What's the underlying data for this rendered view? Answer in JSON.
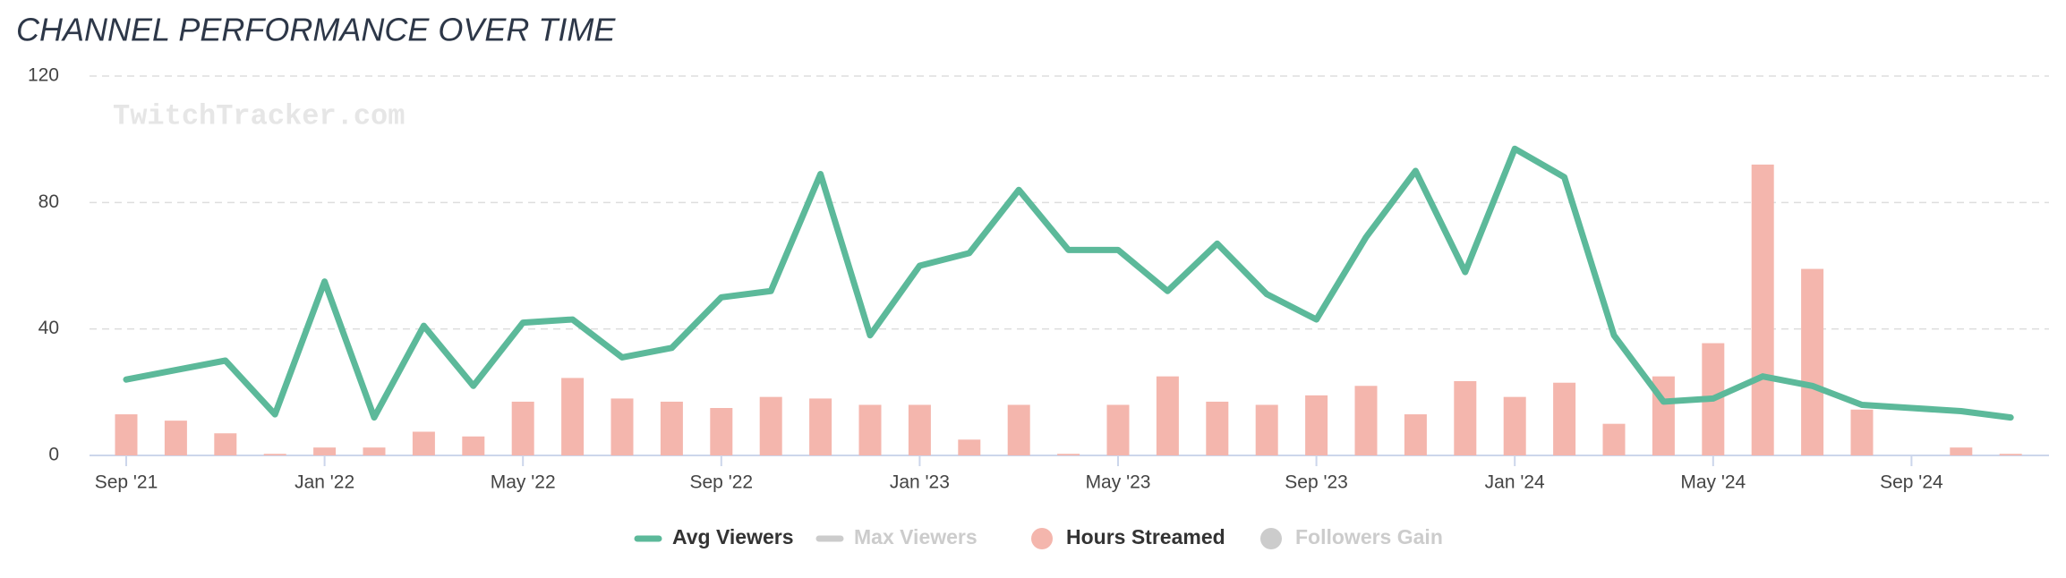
{
  "chart_data": {
    "type": "combo",
    "title": "CHANNEL PERFORMANCE OVER TIME",
    "watermark": "TwitchTracker.com",
    "categories": [
      "Sep '21",
      null,
      null,
      null,
      "Jan '22",
      null,
      null,
      null,
      "May '22",
      null,
      null,
      null,
      "Sep '22",
      null,
      null,
      null,
      "Jan '23",
      null,
      null,
      null,
      "May '23",
      null,
      null,
      null,
      "Sep '23",
      null,
      null,
      null,
      "Jan '24",
      null,
      null,
      null,
      "May '24",
      null,
      null,
      null,
      "Sep '24",
      null,
      null
    ],
    "series": [
      {
        "name": "Avg Viewers",
        "color": "#5cb99a",
        "kind": "line",
        "values": [
          24,
          27,
          30,
          13,
          55,
          12,
          41,
          22,
          42,
          43,
          31,
          34,
          50,
          52,
          89,
          38,
          60,
          64,
          84,
          65,
          65,
          52,
          67,
          51,
          43,
          69,
          90,
          58,
          97,
          88,
          38,
          17,
          18,
          25,
          22,
          16,
          15,
          14,
          12
        ]
      },
      {
        "name": "Hours Streamed",
        "color": "#f4b6ad",
        "kind": "bar",
        "values": [
          13,
          11,
          7,
          0.5,
          2.5,
          2.5,
          7.5,
          6,
          17,
          24.5,
          18,
          17,
          15,
          18.5,
          18,
          16,
          16,
          5,
          16,
          0.5,
          16,
          25,
          17,
          16,
          19,
          22,
          13,
          23.5,
          18.5,
          23,
          10,
          25,
          35.5,
          92,
          59,
          14.5,
          null,
          2.5,
          0.5
        ]
      }
    ],
    "legend": [
      {
        "name": "Avg Viewers",
        "color": "#5cb99a",
        "shape": "line",
        "active": true
      },
      {
        "name": "Max Viewers",
        "color": "#cccccc",
        "shape": "line",
        "active": false
      },
      {
        "name": "Hours Streamed",
        "color": "#f4b6ad",
        "shape": "circle",
        "active": true
      },
      {
        "name": "Followers Gain",
        "color": "#cccccc",
        "shape": "circle",
        "active": false
      }
    ],
    "ylim": [
      0,
      120
    ],
    "yticks": [
      0,
      40,
      80,
      120
    ],
    "grid": true
  }
}
